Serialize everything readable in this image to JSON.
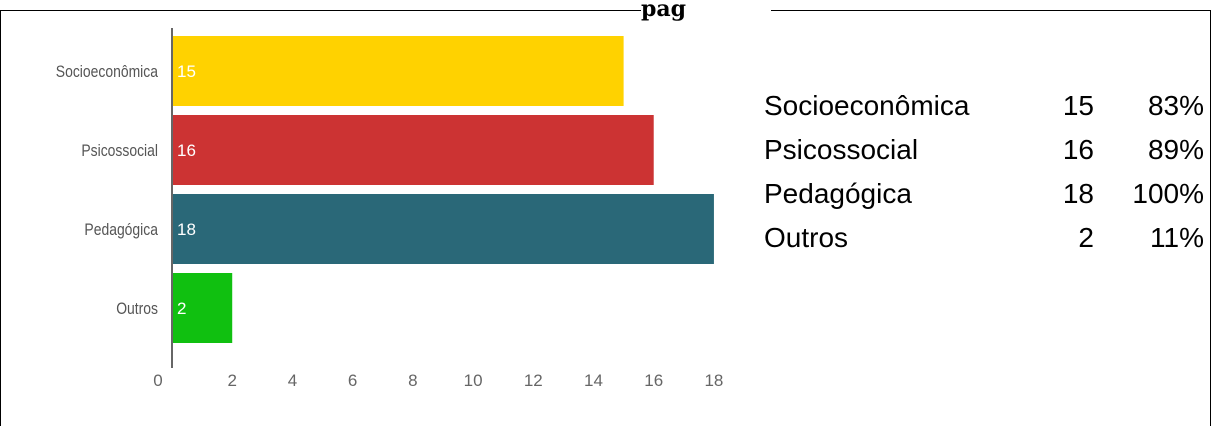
{
  "title_fragment": "pag",
  "chart_data": {
    "type": "bar",
    "orientation": "horizontal",
    "categories": [
      "Socioeconômica",
      "Psicossocial",
      "Pedagógica",
      "Outros"
    ],
    "values": [
      15,
      16,
      18,
      2
    ],
    "data_labels": [
      "15",
      "16",
      "18",
      "2"
    ],
    "colors": [
      "#FFD200",
      "#CC3333",
      "#2A6878",
      "#10C010"
    ],
    "xlim": [
      0,
      18.6
    ],
    "x_ticks": [
      0,
      2,
      4,
      6,
      8,
      10,
      12,
      14,
      16,
      18
    ],
    "grid": false,
    "title": "",
    "xlabel": "",
    "ylabel": ""
  },
  "summary_table": {
    "rows": [
      {
        "name": "Socioeconômica",
        "count": "15",
        "percent": "83%"
      },
      {
        "name": "Psicossocial",
        "count": "16",
        "percent": "89%"
      },
      {
        "name": "Pedagógica",
        "count": "18",
        "percent": "100%"
      },
      {
        "name": "Outros",
        "count": "2",
        "percent": "11%"
      }
    ]
  }
}
